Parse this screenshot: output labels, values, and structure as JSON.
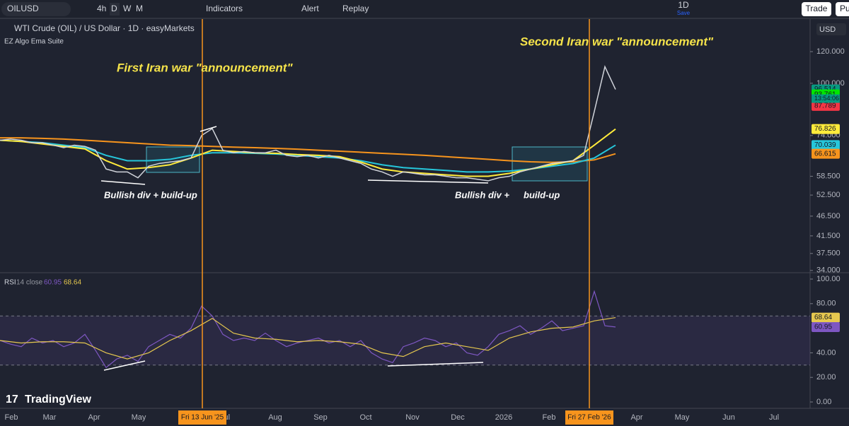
{
  "toolbar": {
    "symbol": "OILUSD",
    "intervals": [
      "4h",
      "D",
      "W",
      "M"
    ],
    "indicators": "Indicators",
    "alert": "Alert",
    "replay": "Replay",
    "timeframe": "1D",
    "save": "Save",
    "trade": "Trade",
    "publish": "Pu"
  },
  "legend": {
    "title": "WTI Crude (OIL) / US Dollar · 1D · easyMarkets",
    "indicator": "EZ Algo Ema Suite",
    "rsi_name": "RSI",
    "rsi_params": "14 close",
    "rsi_value": "60.95",
    "rsi_ma": "68.64"
  },
  "annotations": {
    "first": "First Iran war \"announcement\"",
    "second": "Second Iran war \"announcement\"",
    "div1": "Bullish div +  build-up",
    "div2": "Bullish div +",
    "buildup2": "build-up"
  },
  "brand": "TradingView",
  "price_pane": {
    "currency": "USD",
    "log_scale": true,
    "ylim": [
      33.7,
      143
    ],
    "yticks": [
      {
        "value": 120,
        "label": "120.000"
      },
      {
        "value": 100,
        "label": "100.000"
      },
      {
        "value": 74,
        "label": "74.000"
      },
      {
        "value": 58.5,
        "label": "58.500"
      },
      {
        "value": 52.5,
        "label": "52.500"
      },
      {
        "value": 46.5,
        "label": "46.500"
      },
      {
        "value": 41.5,
        "label": "41.500"
      },
      {
        "value": 37.5,
        "label": "37.500"
      },
      {
        "value": 34,
        "label": "34.000"
      }
    ],
    "price": {
      "color": "#d0d3da",
      "values": [
        72,
        72.5,
        72,
        71,
        71,
        70,
        69,
        70,
        69.5,
        68,
        61,
        60,
        60,
        58,
        62,
        63,
        63.5,
        64,
        65,
        74,
        77,
        68,
        67,
        67.5,
        67,
        67,
        68,
        66,
        65.5,
        66,
        65,
        66,
        65,
        64,
        63,
        61,
        60,
        58.5,
        60,
        59.5,
        59,
        59,
        58.5,
        58,
        58,
        57.5,
        57,
        58,
        58.5,
        60,
        61,
        62,
        63,
        63.5,
        64,
        66,
        85,
        110,
        96.5
      ]
    },
    "ema_orange": {
      "color": "#f7941d",
      "values": [
        73,
        73,
        72.8,
        72.5,
        72,
        71.5,
        71,
        70.5,
        70,
        69.8,
        69.5,
        69.2,
        69,
        68.7,
        68.4,
        68,
        67.6,
        67.2,
        66.8,
        66.4,
        66,
        65.5,
        65,
        64.5,
        64,
        63.6,
        63.4,
        63.6,
        64.3,
        66.6
      ]
    },
    "ema_cyan": {
      "color": "#26c6da",
      "values": [
        72,
        71.5,
        71,
        70,
        69,
        66,
        64,
        64,
        64.5,
        66,
        67,
        67,
        66.8,
        66.5,
        66,
        65.5,
        65,
        64,
        62.5,
        61.5,
        61,
        60.5,
        60,
        60,
        60.3,
        61,
        62,
        63,
        65,
        70
      ]
    },
    "ema_yellow": {
      "color": "#ffeb3b",
      "values": [
        72,
        71.5,
        70.5,
        69.5,
        68.5,
        64,
        61,
        61.5,
        62.5,
        65,
        68,
        67.5,
        67,
        66.8,
        66.3,
        66,
        65.5,
        63.5,
        61,
        60,
        59.5,
        59,
        58.5,
        58.5,
        59.5,
        61,
        62.5,
        64,
        70,
        76.8
      ]
    },
    "badges": [
      {
        "value": 96.514,
        "label": "96.514",
        "color": "#089981"
      },
      {
        "value": 93.761,
        "label": "93.761",
        "color": "#00e600"
      },
      {
        "value": 87.789,
        "label": "87.789",
        "color": "#f23645"
      },
      {
        "value": 76.826,
        "label": "76.826",
        "color": "#ffeb3b"
      },
      {
        "value": 70.039,
        "label": "70.039",
        "color": "#26c6da"
      },
      {
        "value": 66.615,
        "label": "66.615",
        "color": "#f7941d"
      }
    ],
    "countdown": "13:54:06"
  },
  "rsi_pane": {
    "ylim": [
      0,
      100
    ],
    "yticks": [
      {
        "value": 100,
        "label": "100.00"
      },
      {
        "value": 80,
        "label": "80.00"
      },
      {
        "value": 40,
        "label": "40.00"
      },
      {
        "value": 20,
        "label": "20.00"
      },
      {
        "value": 0,
        "label": "0.00"
      }
    ],
    "bands": [
      30,
      70
    ],
    "rsi": {
      "color": "#7e57c2",
      "values": [
        50,
        47,
        45,
        52,
        48,
        50,
        45,
        48,
        55,
        42,
        28,
        35,
        38,
        33,
        45,
        50,
        55,
        52,
        60,
        78,
        70,
        55,
        50,
        52,
        50,
        56,
        50,
        45,
        48,
        50,
        52,
        48,
        50,
        45,
        50,
        40,
        35,
        32,
        45,
        48,
        52,
        50,
        45,
        48,
        40,
        38,
        45,
        55,
        58,
        62,
        55,
        60,
        66,
        58,
        60,
        62,
        90,
        62,
        61
      ]
    },
    "ma": {
      "color": "#e6c84f",
      "values": [
        50,
        48,
        49,
        49,
        48,
        40,
        35,
        40,
        50,
        58,
        68,
        56,
        52,
        51,
        49,
        50,
        49,
        47,
        40,
        37,
        45,
        48,
        45,
        42,
        52,
        57,
        60,
        61,
        66,
        68.64
      ]
    },
    "badges": [
      {
        "value": 68.64,
        "label": "68.64",
        "color": "#e6c84f"
      },
      {
        "value": 60.95,
        "label": "60.95",
        "color": "#7e57c2"
      }
    ]
  },
  "time_axis": {
    "labels": [
      "Feb",
      "Mar",
      "Apr",
      "May",
      "Jul",
      "Aug",
      "Sep",
      "Oct",
      "Nov",
      "Dec",
      "2026",
      "Feb",
      "Apr",
      "May",
      "Jun",
      "Jul"
    ],
    "markers": [
      "Fri 13 Jun '25",
      "Fri 27 Feb '26"
    ]
  }
}
